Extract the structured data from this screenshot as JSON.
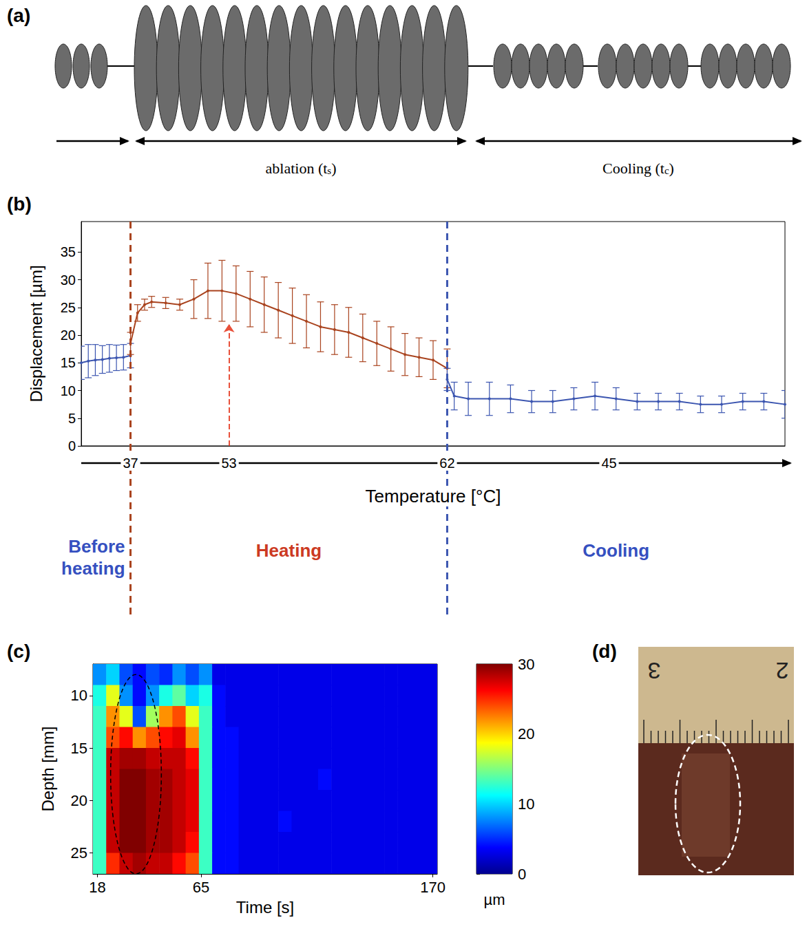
{
  "chart_data": [
    {
      "type": "line",
      "title": "(b)",
      "ylabel": "Displacement [µm]",
      "xlabel": "Temperature [°C]",
      "xlim": [
        0,
        100
      ],
      "ylim": [
        0,
        40.5
      ],
      "yticks": [
        0,
        5,
        10,
        15,
        20,
        25,
        30,
        35
      ],
      "tick_labels": "y",
      "grid": false,
      "marker": "circle",
      "series": [
        {
          "color": "#3b55b0",
          "x": [
            0,
            1,
            2,
            3,
            4,
            5,
            6,
            7
          ],
          "values": [
            15,
            15.3,
            15.5,
            15.6,
            15.8,
            15.9,
            16,
            16.3
          ],
          "errors": [
            3,
            3,
            2.8,
            2.5,
            2.5,
            2.3,
            2.3,
            2.2
          ]
        },
        {
          "color": "#a9431e",
          "x": [
            7,
            8,
            9,
            10,
            12,
            14,
            16,
            18,
            20,
            22,
            24,
            26,
            28,
            30,
            32,
            34,
            36,
            38,
            40,
            42,
            44,
            46,
            48,
            50,
            52
          ],
          "values": [
            18.5,
            24,
            25.5,
            26,
            25.8,
            25.5,
            26.5,
            28,
            28,
            27.5,
            26.5,
            25.5,
            24.5,
            23.5,
            22.5,
            21.5,
            21,
            20.5,
            19.5,
            18.5,
            17.5,
            16.5,
            16,
            15.5,
            14
          ],
          "errors": [
            2,
            1.5,
            1,
            1,
            1,
            1,
            3.5,
            5,
            5.5,
            5,
            5,
            5,
            5,
            5,
            4.8,
            4.5,
            4.5,
            4.5,
            4.3,
            4,
            4,
            3.8,
            3.5,
            3.5,
            3.5
          ]
        },
        {
          "color": "#3b55b0",
          "x": [
            52,
            53,
            55,
            58,
            61,
            64,
            67,
            70,
            73,
            76,
            79,
            82,
            85,
            88,
            91,
            94,
            97,
            100
          ],
          "values": [
            12,
            9,
            8.5,
            8.5,
            8.5,
            8,
            8,
            8.5,
            9,
            8.5,
            8,
            8,
            8,
            7.5,
            7.5,
            8,
            8,
            7.5
          ],
          "errors": [
            2,
            2.5,
            3,
            3,
            2.5,
            2,
            2,
            2,
            2.5,
            2,
            1.5,
            1.5,
            1.5,
            1.5,
            1.5,
            1.5,
            1.5,
            2.5
          ]
        }
      ],
      "dividers": [
        7,
        52
      ],
      "phases": [
        "Before heating",
        "Heating",
        "Cooling"
      ],
      "temperature_marks": [
        {
          "x": 7,
          "temperature": 37
        },
        {
          "x": 21,
          "temperature": 53,
          "arrow_to": 22
        },
        {
          "x": 52,
          "temperature": 62
        },
        {
          "x": 75,
          "temperature": 45
        }
      ]
    },
    {
      "type": "heatmap",
      "title": "(c)",
      "xlabel": "Time [s]",
      "ylabel": "Depth [mm]",
      "xlim": [
        16,
        172
      ],
      "ylim": [
        7,
        27
      ],
      "xticks": [
        18,
        65,
        170
      ],
      "yticks": [
        10,
        15,
        20,
        25
      ],
      "time_edges": [
        16,
        22,
        28,
        34,
        40,
        46,
        52,
        58,
        64,
        70,
        76,
        82,
        88,
        94,
        100,
        106,
        112,
        118,
        124,
        130,
        136,
        142,
        148,
        154,
        160,
        166,
        172
      ],
      "depth_edges": [
        7,
        9,
        11,
        13,
        15,
        17,
        19,
        21,
        23,
        25,
        27
      ],
      "cells": [
        [
          8,
          10,
          6,
          4,
          6,
          5,
          8,
          6,
          8,
          3,
          3,
          3,
          3,
          3,
          3,
          3,
          3,
          3,
          3,
          3,
          3,
          3,
          3,
          3,
          3,
          3
        ],
        [
          12,
          18,
          8,
          4,
          8,
          12,
          14,
          10,
          12,
          4,
          3,
          3,
          3,
          3,
          3,
          3,
          3,
          3,
          3,
          3,
          3,
          3,
          3,
          3,
          3,
          3
        ],
        [
          13,
          22,
          18,
          6,
          16,
          22,
          24,
          18,
          13,
          4,
          3,
          3,
          3,
          3,
          3,
          3,
          3,
          3,
          3,
          3,
          3,
          3,
          3,
          3,
          3,
          3
        ],
        [
          13,
          24,
          26,
          22,
          24,
          26,
          27,
          22,
          13,
          4,
          4,
          3,
          3,
          3,
          3,
          3,
          3,
          3,
          3,
          3,
          3,
          3,
          3,
          3,
          3,
          3
        ],
        [
          13,
          28,
          29,
          29,
          28,
          28,
          28,
          26,
          13,
          4,
          4,
          3,
          3,
          3,
          3,
          3,
          3,
          3,
          3,
          3,
          3,
          3,
          3,
          3,
          3,
          3
        ],
        [
          13,
          28,
          30,
          30,
          29,
          29,
          28,
          27,
          13,
          4,
          4,
          3,
          3,
          3,
          3,
          3,
          3,
          4,
          3,
          3,
          3,
          3,
          3,
          3,
          3,
          3
        ],
        [
          13,
          28,
          30,
          30,
          29,
          29,
          28,
          27,
          13,
          4,
          4,
          3,
          3,
          3,
          3,
          3,
          3,
          3,
          3,
          3,
          3,
          3,
          3,
          3,
          3,
          3
        ],
        [
          13,
          28,
          30,
          30,
          29,
          29,
          28,
          27,
          13,
          4,
          4,
          3,
          3,
          3,
          4,
          3,
          3,
          3,
          3,
          3,
          3,
          3,
          3,
          3,
          3,
          3
        ],
        [
          13,
          28,
          30,
          30,
          29,
          29,
          28,
          26,
          13,
          4,
          4,
          3,
          3,
          3,
          3,
          3,
          3,
          3,
          3,
          3,
          3,
          3,
          3,
          3,
          3,
          3
        ],
        [
          13,
          25,
          28,
          29,
          28,
          28,
          26,
          24,
          13,
          4,
          4,
          3,
          3,
          3,
          3,
          3,
          3,
          3,
          3,
          3,
          3,
          3,
          3,
          3,
          3,
          3
        ]
      ],
      "colorbar": {
        "range": [
          0,
          30
        ],
        "ticks": [
          0,
          10,
          20,
          30
        ],
        "label": "µm"
      },
      "ellipse": {
        "center": [
          35.5,
          17.5
        ],
        "radii": [
          11.5,
          9.5
        ]
      }
    }
  ],
  "diagram": {
    "title": "(a)",
    "phases": [
      {
        "text": "ablation (t",
        "subscript": "s",
        "text_after": ")"
      },
      {
        "text": "Cooling (t",
        "subscript": "c",
        "text_after": ")"
      }
    ]
  },
  "photo": {
    "title": "(d)",
    "ruler_labels": [
      3,
      2
    ]
  }
}
